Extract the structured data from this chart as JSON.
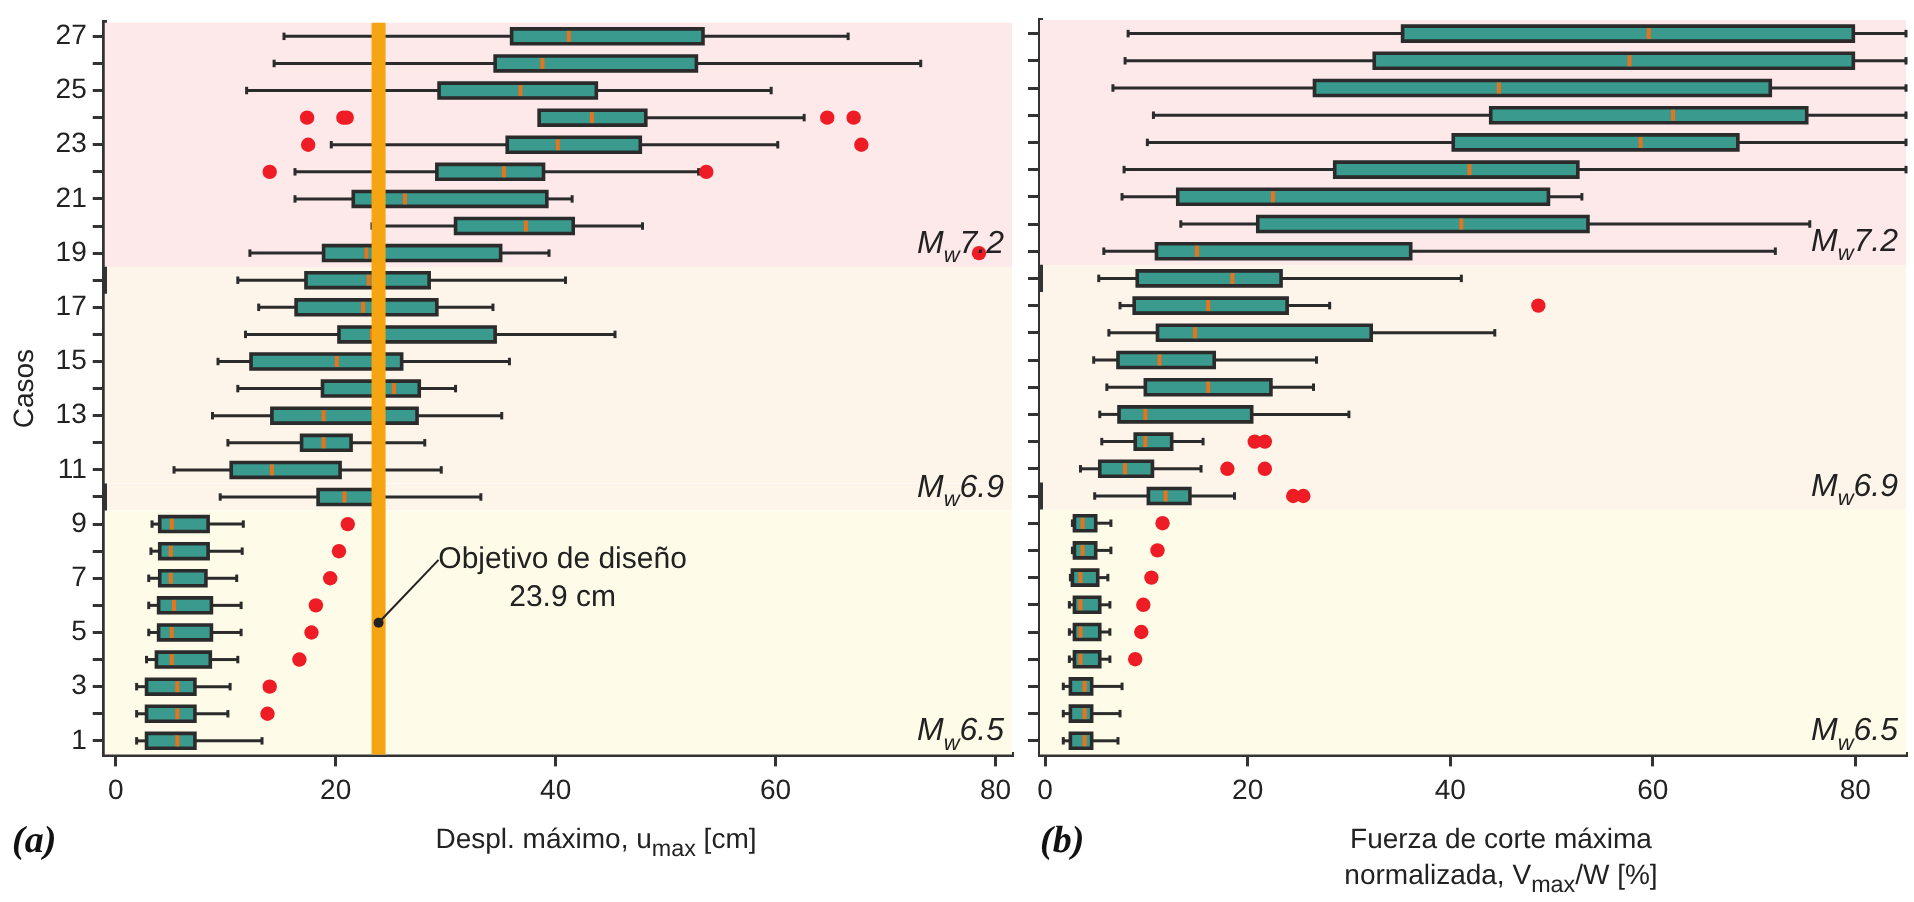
{
  "chart_data": [
    {
      "type": "box",
      "orientation": "horizontal",
      "color": "#3a9a8e",
      "xlabel": "Despl. máximo, u$_{max}$ [cm]",
      "ylabel": "Casos",
      "categories": [
        "27",
        null,
        "25",
        null,
        "23",
        null,
        "21",
        null,
        "19",
        null,
        "17",
        null,
        "15",
        null,
        "13",
        null,
        "11",
        null,
        "9",
        null,
        "7",
        null,
        "5",
        null,
        "3",
        null,
        "1"
      ],
      "boxes": [
        {
          "low": 15.3,
          "q1": 36.0,
          "median": 41.2,
          "q3": 53.4,
          "high": 66.6
        },
        {
          "low": 14.4,
          "q1": 34.5,
          "median": 38.8,
          "q3": 52.8,
          "high": 73.2
        },
        {
          "low": 11.9,
          "q1": 29.4,
          "median": 36.8,
          "q3": 43.7,
          "high": 59.6
        },
        {
          "low": 38.5,
          "q1": 38.5,
          "median": 43.3,
          "q3": 48.2,
          "high": 62.6,
          "outliers": [
            17.4,
            20.7,
            21.0,
            64.7,
            67.1
          ]
        },
        {
          "low": 19.6,
          "q1": 35.6,
          "median": 40.2,
          "q3": 47.7,
          "high": 60.2,
          "outliers": [
            17.5,
            67.8
          ]
        },
        {
          "low": 16.3,
          "q1": 29.2,
          "median": 35.3,
          "q3": 38.9,
          "high": 53.0,
          "outliers": [
            14.0,
            53.7
          ]
        },
        {
          "low": 16.3,
          "q1": 21.6,
          "median": 26.3,
          "q3": 39.2,
          "high": 41.5
        },
        {
          "low": 23.3,
          "q1": 30.9,
          "median": 37.3,
          "q3": 41.6,
          "high": 47.9
        },
        {
          "low": 12.2,
          "q1": 18.9,
          "median": 22.8,
          "q3": 35.0,
          "high": 39.4,
          "outliers": [
            78.5
          ]
        },
        {
          "low": 11.1,
          "q1": 17.3,
          "median": 23.0,
          "q3": 28.5,
          "high": 40.9
        },
        {
          "low": 13.0,
          "q1": 16.4,
          "median": 22.5,
          "q3": 29.2,
          "high": 34.3
        },
        {
          "low": 11.8,
          "q1": 20.3,
          "median": 23.3,
          "q3": 34.5,
          "high": 45.4
        },
        {
          "low": 9.3,
          "q1": 12.3,
          "median": 20.1,
          "q3": 26.0,
          "high": 35.8
        },
        {
          "low": 11.1,
          "q1": 18.8,
          "median": 25.3,
          "q3": 27.6,
          "high": 30.9
        },
        {
          "low": 8.8,
          "q1": 14.2,
          "median": 18.9,
          "q3": 27.4,
          "high": 35.1
        },
        {
          "low": 10.2,
          "q1": 16.9,
          "median": 18.9,
          "q3": 21.4,
          "high": 28.1
        },
        {
          "low": 5.3,
          "q1": 10.5,
          "median": 14.2,
          "q3": 20.4,
          "high": 29.6
        },
        {
          "low": 9.5,
          "q1": 18.4,
          "median": 20.8,
          "q3": 23.6,
          "high": 33.2
        },
        {
          "low": 3.3,
          "q1": 4.0,
          "median": 5.1,
          "q3": 8.4,
          "high": 11.6,
          "outliers": [
            21.1
          ]
        },
        {
          "low": 3.2,
          "q1": 4.0,
          "median": 5.0,
          "q3": 8.4,
          "high": 11.5,
          "outliers": [
            20.3
          ]
        },
        {
          "low": 3.0,
          "q1": 4.0,
          "median": 5.0,
          "q3": 8.2,
          "high": 11.0,
          "outliers": [
            19.5
          ]
        },
        {
          "low": 3.0,
          "q1": 3.9,
          "median": 5.3,
          "q3": 8.7,
          "high": 11.4,
          "outliers": [
            18.2
          ]
        },
        {
          "low": 3.0,
          "q1": 3.9,
          "median": 5.1,
          "q3": 8.7,
          "high": 11.4,
          "outliers": [
            17.8
          ]
        },
        {
          "low": 2.8,
          "q1": 3.7,
          "median": 5.1,
          "q3": 8.6,
          "high": 11.1,
          "outliers": [
            16.7
          ]
        },
        {
          "low": 1.9,
          "q1": 2.8,
          "median": 5.6,
          "q3": 7.2,
          "high": 10.4,
          "outliers": [
            14.0
          ]
        },
        {
          "low": 1.9,
          "q1": 2.8,
          "median": 5.6,
          "q3": 7.2,
          "high": 10.2,
          "outliers": [
            13.8
          ]
        },
        {
          "low": 1.9,
          "q1": 2.8,
          "median": 5.6,
          "q3": 7.2,
          "high": 13.3
        }
      ],
      "xlim": [
        -1,
        81.5
      ],
      "xticks": [
        0,
        20,
        40,
        60,
        80
      ],
      "bands": [
        {
          "axis": "y",
          "from": "11",
          "to": "17",
          "label": "M$_{w}$6.9",
          "color": "#fdf4ea"
        },
        {
          "axis": "y",
          "from": "19",
          "to": "27",
          "label": "M$_{w}$7.2",
          "color": "#fde8ea"
        },
        {
          "axis": "y",
          "from": "1",
          "to": "9",
          "label": "M$_{w}$6.5",
          "color": "#fefbe8"
        }
      ],
      "ref_lines": [
        {
          "axis": "x",
          "value": 23.9,
          "label": "Objetivo de diseño\n23.9 cm",
          "color": "#f5a512"
        }
      ],
      "annotations": [
        "(a)"
      ],
      "grid": false,
      "legend": false
    },
    {
      "type": "box",
      "orientation": "horizontal",
      "color": "#3a9a8e",
      "xlabel": "Fuerza de corte máxima\nnormalizada, V$_{max}$/W [%]",
      "tick_labels": "x",
      "categories": [
        "27",
        null,
        "25",
        null,
        "23",
        null,
        "21",
        null,
        "19",
        null,
        "17",
        null,
        "15",
        null,
        "13",
        null,
        "11",
        null,
        "9",
        null,
        "7",
        null,
        "5",
        null,
        "3",
        null,
        "1"
      ],
      "boxes": [
        {
          "low": 8.2,
          "q1": 35.3,
          "median": 59.6,
          "q3": 79.8,
          "high": 85
        },
        {
          "low": 7.9,
          "q1": 32.5,
          "median": 57.7,
          "q3": 79.8,
          "high": 85
        },
        {
          "low": 6.7,
          "q1": 26.6,
          "median": 44.8,
          "q3": 71.6,
          "high": 85
        },
        {
          "low": 10.7,
          "q1": 44.0,
          "median": 62.0,
          "q3": 75.2,
          "high": 85
        },
        {
          "low": 10.1,
          "q1": 40.3,
          "median": 58.8,
          "q3": 68.4,
          "high": 85
        },
        {
          "low": 7.8,
          "q1": 28.6,
          "median": 41.9,
          "q3": 52.6,
          "high": 85
        },
        {
          "low": 7.6,
          "q1": 13.1,
          "median": 22.5,
          "q3": 49.7,
          "high": 53.0
        },
        {
          "low": 13.4,
          "q1": 21.0,
          "median": 41.1,
          "q3": 53.6,
          "high": 75.5
        },
        {
          "low": 5.8,
          "q1": 11.0,
          "median": 15.0,
          "q3": 36.1,
          "high": 72.1
        },
        {
          "low": 5.3,
          "q1": 9.1,
          "median": 18.5,
          "q3": 23.3,
          "high": 41.1
        },
        {
          "low": 7.4,
          "q1": 8.8,
          "median": 16.1,
          "q3": 23.9,
          "high": 28.1,
          "outliers": [
            48.7
          ]
        },
        {
          "low": 6.3,
          "q1": 11.1,
          "median": 14.8,
          "q3": 32.2,
          "high": 44.4
        },
        {
          "low": 4.8,
          "q1": 7.2,
          "median": 11.3,
          "q3": 16.7,
          "high": 26.8
        },
        {
          "low": 6.1,
          "q1": 9.9,
          "median": 16.1,
          "q3": 22.3,
          "high": 26.5
        },
        {
          "low": 5.4,
          "q1": 7.3,
          "median": 9.9,
          "q3": 20.4,
          "high": 30.0
        },
        {
          "low": 5.6,
          "q1": 8.9,
          "median": 9.9,
          "q3": 12.5,
          "high": 15.6,
          "outliers": [
            20.7,
            21.7
          ]
        },
        {
          "low": 3.5,
          "q1": 5.4,
          "median": 7.9,
          "q3": 10.6,
          "high": 15.4,
          "outliers": [
            18.0,
            21.7
          ]
        },
        {
          "low": 4.9,
          "q1": 10.2,
          "median": 11.9,
          "q3": 14.3,
          "high": 18.7,
          "outliers": [
            24.5,
            25.5
          ]
        },
        {
          "low": 2.7,
          "q1": 2.9,
          "median": 3.7,
          "q3": 5.0,
          "high": 6.5,
          "outliers": [
            11.6
          ]
        },
        {
          "low": 2.7,
          "q1": 2.9,
          "median": 3.7,
          "q3": 5.0,
          "high": 6.5,
          "outliers": [
            11.1
          ]
        },
        {
          "low": 2.5,
          "q1": 2.7,
          "median": 3.5,
          "q3": 5.2,
          "high": 6.2,
          "outliers": [
            10.5
          ]
        },
        {
          "low": 2.4,
          "q1": 2.9,
          "median": 3.5,
          "q3": 5.4,
          "high": 6.4,
          "outliers": [
            9.7
          ]
        },
        {
          "low": 2.4,
          "q1": 2.9,
          "median": 3.5,
          "q3": 5.4,
          "high": 6.4,
          "outliers": [
            9.5
          ]
        },
        {
          "low": 2.4,
          "q1": 2.9,
          "median": 3.5,
          "q3": 5.4,
          "high": 6.4,
          "outliers": [
            8.9
          ]
        },
        {
          "low": 1.8,
          "q1": 2.5,
          "median": 3.9,
          "q3": 4.6,
          "high": 7.6
        },
        {
          "low": 1.8,
          "q1": 2.5,
          "median": 3.9,
          "q3": 4.6,
          "high": 7.4
        },
        {
          "low": 1.8,
          "q1": 2.5,
          "median": 3.9,
          "q3": 4.6,
          "high": 7.2
        }
      ],
      "xlim": [
        -0.5,
        85
      ],
      "xticks": [
        0,
        20,
        40,
        60,
        80
      ],
      "bands": [
        {
          "axis": "y",
          "from": "11",
          "to": "17",
          "label": "M$_{w}$6.9",
          "color": "#fdf4ea"
        },
        {
          "axis": "y",
          "from": "19",
          "to": "27",
          "label": "M$_{w}$7.2",
          "color": "#fde8ea"
        },
        {
          "axis": "y",
          "from": "1",
          "to": "9",
          "label": "M$_{w}$6.5",
          "color": "#fefbe8"
        }
      ],
      "annotations": [
        "(b)"
      ],
      "grid": false,
      "legend": false
    }
  ]
}
